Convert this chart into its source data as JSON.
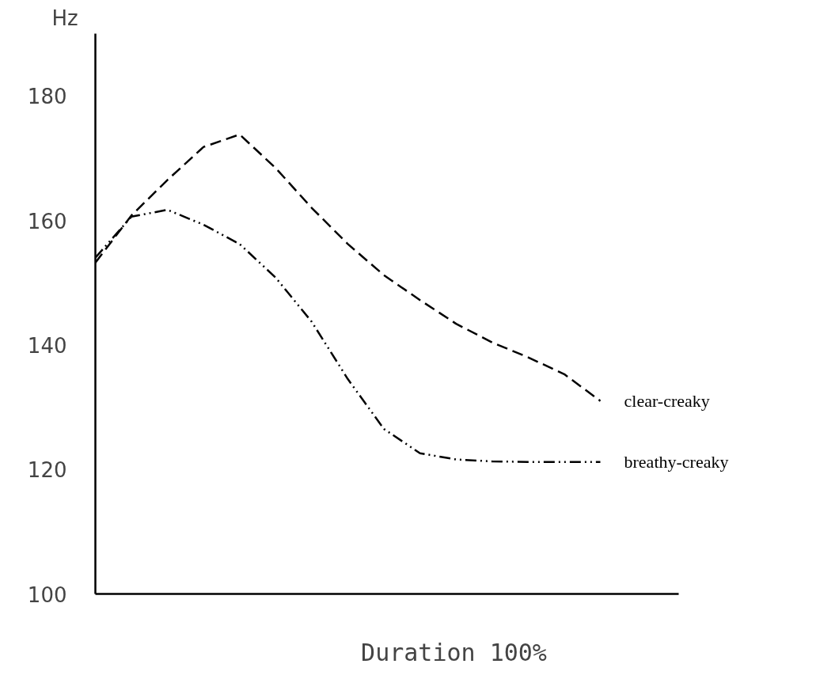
{
  "chart_data": {
    "type": "line",
    "ylabel": "Hz",
    "xlabel": "Duration 100%",
    "categories": [
      null,
      null,
      null,
      null,
      null,
      null,
      null,
      null,
      null,
      null,
      null,
      null,
      null,
      null,
      null
    ],
    "series": [
      {
        "name": "clear-creaky",
        "color": "#000000",
        "line_style": "dashed",
        "values": [
          153.2,
          160.8,
          166.5,
          171.8,
          173.8,
          168.4,
          162,
          156.2,
          151.2,
          147.2,
          143.4,
          140.4,
          138,
          135.3,
          131
        ]
      },
      {
        "name": "breathy-creaky",
        "color": "#000000",
        "line_style": "dashdot",
        "values": [
          154,
          160.6,
          161.7,
          159.3,
          156.2,
          150.8,
          143.7,
          134.5,
          126.5,
          122.6,
          121.6,
          121.3,
          121.2,
          121.2,
          121.2
        ]
      }
    ],
    "ylim": [
      100,
      190
    ],
    "yticks": [
      100,
      120,
      140,
      160,
      180
    ],
    "grid": false,
    "legend": false,
    "marker": "none"
  }
}
